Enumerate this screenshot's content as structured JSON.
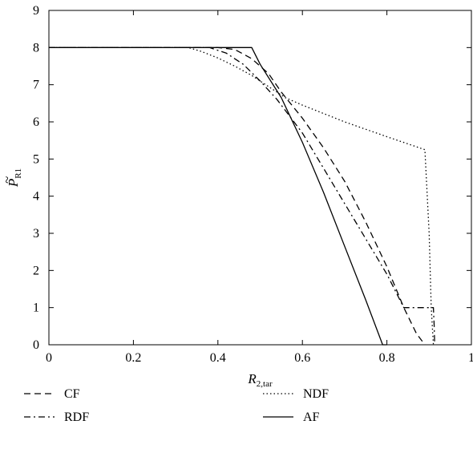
{
  "chart_data": {
    "type": "line",
    "xlabel": {
      "main": "R",
      "sub": "2,tar"
    },
    "ylabel": {
      "main": "P",
      "sub": "R1",
      "accent": "~"
    },
    "xlim": [
      0,
      1
    ],
    "ylim": [
      0,
      9
    ],
    "xticks": [
      0,
      0.2,
      0.4,
      0.6,
      0.8,
      1
    ],
    "xtick_labels": [
      "0",
      "0.2",
      "0.4",
      "0.6",
      "0.8",
      "1"
    ],
    "yticks": [
      0,
      1,
      2,
      3,
      4,
      5,
      6,
      7,
      8,
      9
    ],
    "ytick_labels": [
      "0",
      "1",
      "2",
      "3",
      "4",
      "5",
      "6",
      "7",
      "8",
      "9"
    ],
    "grid": false,
    "legend_position": "below",
    "series": [
      {
        "name": "CF",
        "dash": "8,5",
        "x": [
          0,
          0.4,
          0.44,
          0.48,
          0.52,
          0.55,
          0.6,
          0.65,
          0.7,
          0.75,
          0.8,
          0.84,
          0.87,
          0.89
        ],
        "y": [
          8,
          8,
          7.95,
          7.7,
          7.3,
          6.8,
          6.1,
          5.3,
          4.4,
          3.3,
          2.1,
          1.0,
          0.3,
          0
        ]
      },
      {
        "name": "NDF",
        "dash": "1.5,3",
        "x": [
          0,
          0.33,
          0.36,
          0.4,
          0.44,
          0.48,
          0.52,
          0.56,
          0.6,
          0.7,
          0.8,
          0.89,
          0.9,
          0.905,
          0.91
        ],
        "y": [
          8,
          8,
          7.9,
          7.72,
          7.5,
          7.25,
          6.95,
          6.65,
          6.45,
          6.0,
          5.6,
          5.25,
          3.0,
          1.0,
          0
        ]
      },
      {
        "name": "RDF",
        "dash": "8,4,2,4",
        "x": [
          0,
          0.38,
          0.42,
          0.46,
          0.5,
          0.54,
          0.6,
          0.65,
          0.7,
          0.75,
          0.8,
          0.84,
          0.91,
          0.912,
          0.913
        ],
        "y": [
          8,
          8,
          7.85,
          7.55,
          7.1,
          6.6,
          5.7,
          4.75,
          3.8,
          2.85,
          1.9,
          1.0,
          1.0,
          0.5,
          0
        ]
      },
      {
        "name": "AF",
        "dash": "",
        "x": [
          0,
          0.48,
          0.5,
          0.55,
          0.6,
          0.65,
          0.7,
          0.75,
          0.79,
          0.8
        ],
        "y": [
          8,
          8,
          7.55,
          6.65,
          5.45,
          4.1,
          2.65,
          1.2,
          0,
          0
        ]
      }
    ],
    "legend": [
      {
        "name": "CF",
        "dash": "8,5",
        "col": 0,
        "row": 0
      },
      {
        "name": "NDF",
        "dash": "1.5,3",
        "col": 1,
        "row": 0
      },
      {
        "name": "RDF",
        "dash": "8,4,2,4",
        "col": 0,
        "row": 1
      },
      {
        "name": "AF",
        "dash": "",
        "col": 1,
        "row": 1
      }
    ]
  }
}
